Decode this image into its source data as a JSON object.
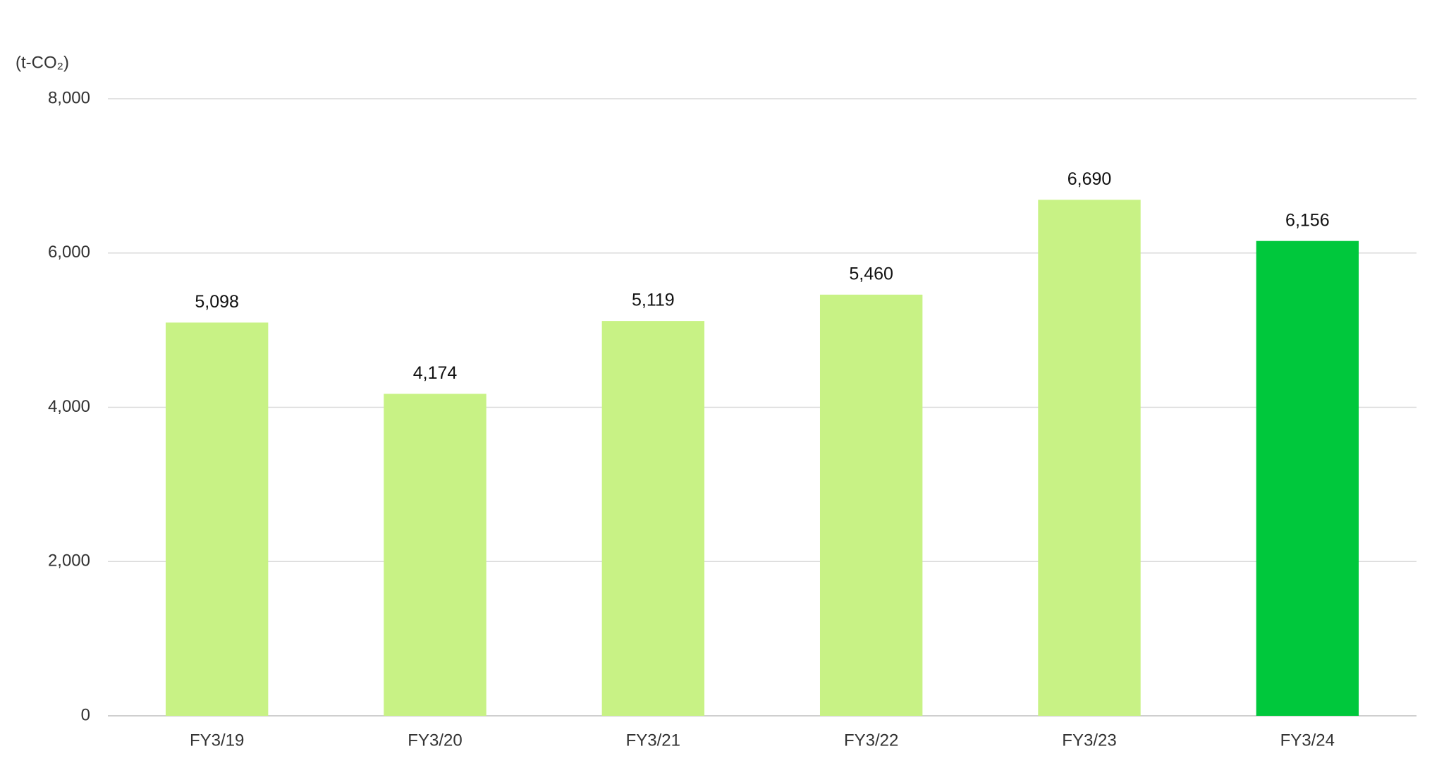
{
  "chart_data": {
    "type": "bar",
    "y_unit_label": "(t-CO₂)",
    "categories": [
      "FY3/19",
      "FY3/20",
      "FY3/21",
      "FY3/22",
      "FY3/23",
      "FY3/24"
    ],
    "values": [
      5098,
      4174,
      5119,
      5460,
      6690,
      6156
    ],
    "value_labels": [
      "5,098",
      "4,174",
      "5,119",
      "5,460",
      "6,690",
      "6,156"
    ],
    "colors": [
      "#c8f285",
      "#c8f285",
      "#c8f285",
      "#c8f285",
      "#c8f285",
      "#00c83c"
    ],
    "ylim": [
      0,
      8000
    ],
    "yticks": [
      0,
      {
        "value": 2000,
        "label": "2,000"
      },
      {
        "value": 4000,
        "label": "4,000"
      },
      {
        "value": 6000,
        "label": "6,000"
      },
      {
        "value": 8000,
        "label": "8,000"
      }
    ],
    "grid": true
  }
}
